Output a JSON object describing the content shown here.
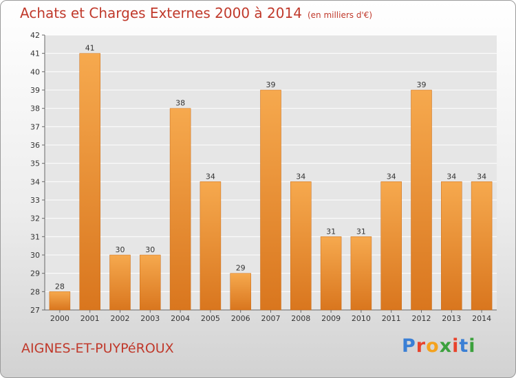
{
  "header": {
    "title": "Achats et Charges Externes 2000 à 2014",
    "unit": "(en milliers d'€)"
  },
  "footer": {
    "place": "AIGNES-ET-PUYPéROUX",
    "brand": "Proxiti",
    "brand_colors": [
      "#3a7fd5",
      "#e8432c",
      "#f4a21e",
      "#3ca13d",
      "#e8432c",
      "#3a7fd5",
      "#3ca13d"
    ]
  },
  "colors": {
    "bar_light": "#f6a94e",
    "bar_dark": "#d9761e",
    "grid": "#ffffff",
    "axis_text": "#333333"
  },
  "chart_data": {
    "type": "bar",
    "title": "Achats et Charges Externes 2000 à 2014",
    "subtitle": "(en milliers d'€)",
    "categories": [
      "2000",
      "2001",
      "2002",
      "2003",
      "2004",
      "2005",
      "2006",
      "2007",
      "2008",
      "2009",
      "2010",
      "2011",
      "2012",
      "2013",
      "2014"
    ],
    "values": [
      28,
      41,
      30,
      30,
      38,
      34,
      29,
      39,
      34,
      31,
      31,
      34,
      39,
      34,
      34
    ],
    "ylim": [
      27,
      42
    ],
    "yticks": [
      27,
      28,
      29,
      30,
      31,
      32,
      33,
      34,
      35,
      36,
      37,
      38,
      39,
      40,
      41,
      42
    ],
    "grid": true,
    "data_labels": true
  }
}
